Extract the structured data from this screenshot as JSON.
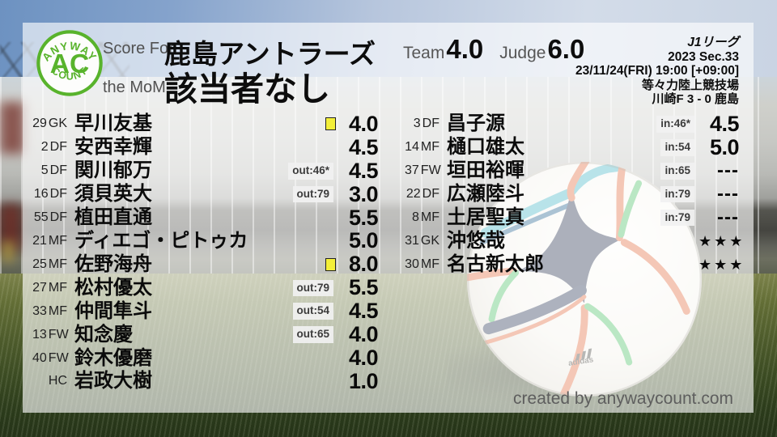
{
  "logo": {
    "arc_top": "ANYWAY",
    "center": "AC",
    "arc_bottom": "COUNT"
  },
  "header": {
    "score_for_label": "Score For",
    "team_name": "鹿島アントラーズ",
    "mom_label": "the MoM",
    "mom_value": "該当者なし",
    "team_score_label": "Team",
    "team_score": "4.0",
    "judge_score_label": "Judge",
    "judge_score": "6.0"
  },
  "match_info": {
    "league": "J1リーグ",
    "season": "2023 Sec.33",
    "kickoff": "23/11/24(FRI) 19:00 [+09:00]",
    "venue": "等々力陸上競技場",
    "result": "川崎F 3 - 0 鹿島"
  },
  "players": {
    "left": [
      {
        "num": "29",
        "pos": "GK",
        "name": "早川友基",
        "badge": "",
        "yellow_card": true,
        "score": "4.0"
      },
      {
        "num": "2",
        "pos": "DF",
        "name": "安西幸輝",
        "badge": "",
        "yellow_card": false,
        "score": "4.5"
      },
      {
        "num": "5",
        "pos": "DF",
        "name": "関川郁万",
        "badge": "out:46*",
        "yellow_card": false,
        "score": "4.5"
      },
      {
        "num": "16",
        "pos": "DF",
        "name": "須貝英大",
        "badge": "out:79",
        "yellow_card": false,
        "score": "3.0"
      },
      {
        "num": "55",
        "pos": "DF",
        "name": "植田直通",
        "badge": "",
        "yellow_card": false,
        "score": "5.5"
      },
      {
        "num": "21",
        "pos": "MF",
        "name": "ディエゴ・ピトゥカ",
        "badge": "",
        "yellow_card": false,
        "score": "5.0"
      },
      {
        "num": "25",
        "pos": "MF",
        "name": "佐野海舟",
        "badge": "",
        "yellow_card": true,
        "score": "8.0"
      },
      {
        "num": "27",
        "pos": "MF",
        "name": "松村優太",
        "badge": "out:79",
        "yellow_card": false,
        "score": "5.5"
      },
      {
        "num": "33",
        "pos": "MF",
        "name": "仲間隼斗",
        "badge": "out:54",
        "yellow_card": false,
        "score": "4.5"
      },
      {
        "num": "13",
        "pos": "FW",
        "name": "知念慶",
        "badge": "out:65",
        "yellow_card": false,
        "score": "4.0"
      },
      {
        "num": "40",
        "pos": "FW",
        "name": "鈴木優磨",
        "badge": "",
        "yellow_card": false,
        "score": "4.0"
      },
      {
        "num": "",
        "pos": "HC",
        "name": "岩政大樹",
        "badge": "",
        "yellow_card": false,
        "score": "1.0"
      }
    ],
    "right": [
      {
        "num": "3",
        "pos": "DF",
        "name": "昌子源",
        "badge": "in:46*",
        "yellow_card": false,
        "score": "4.5"
      },
      {
        "num": "14",
        "pos": "MF",
        "name": "樋口雄太",
        "badge": "in:54",
        "yellow_card": false,
        "score": "5.0"
      },
      {
        "num": "37",
        "pos": "FW",
        "name": "垣田裕暉",
        "badge": "in:65",
        "yellow_card": false,
        "score": "---"
      },
      {
        "num": "22",
        "pos": "DF",
        "name": "広瀬陸斗",
        "badge": "in:79",
        "yellow_card": false,
        "score": "---"
      },
      {
        "num": "8",
        "pos": "MF",
        "name": "土居聖真",
        "badge": "in:79",
        "yellow_card": false,
        "score": "---"
      },
      {
        "num": "31",
        "pos": "GK",
        "name": "沖悠哉",
        "badge": "",
        "yellow_card": false,
        "score": "★★★"
      },
      {
        "num": "30",
        "pos": "MF",
        "name": "名古新太郎",
        "badge": "",
        "yellow_card": false,
        "score": "★★★"
      }
    ]
  },
  "footer": {
    "credit": "created by anywaycount.com"
  },
  "colors": {
    "accent_green": "#58b32c",
    "yellow_card": "#f3ef39",
    "overlay_white": "rgba(255,255,255,0.63)",
    "badge_bg": "#f1f1f1",
    "label_gray": "#515151"
  }
}
